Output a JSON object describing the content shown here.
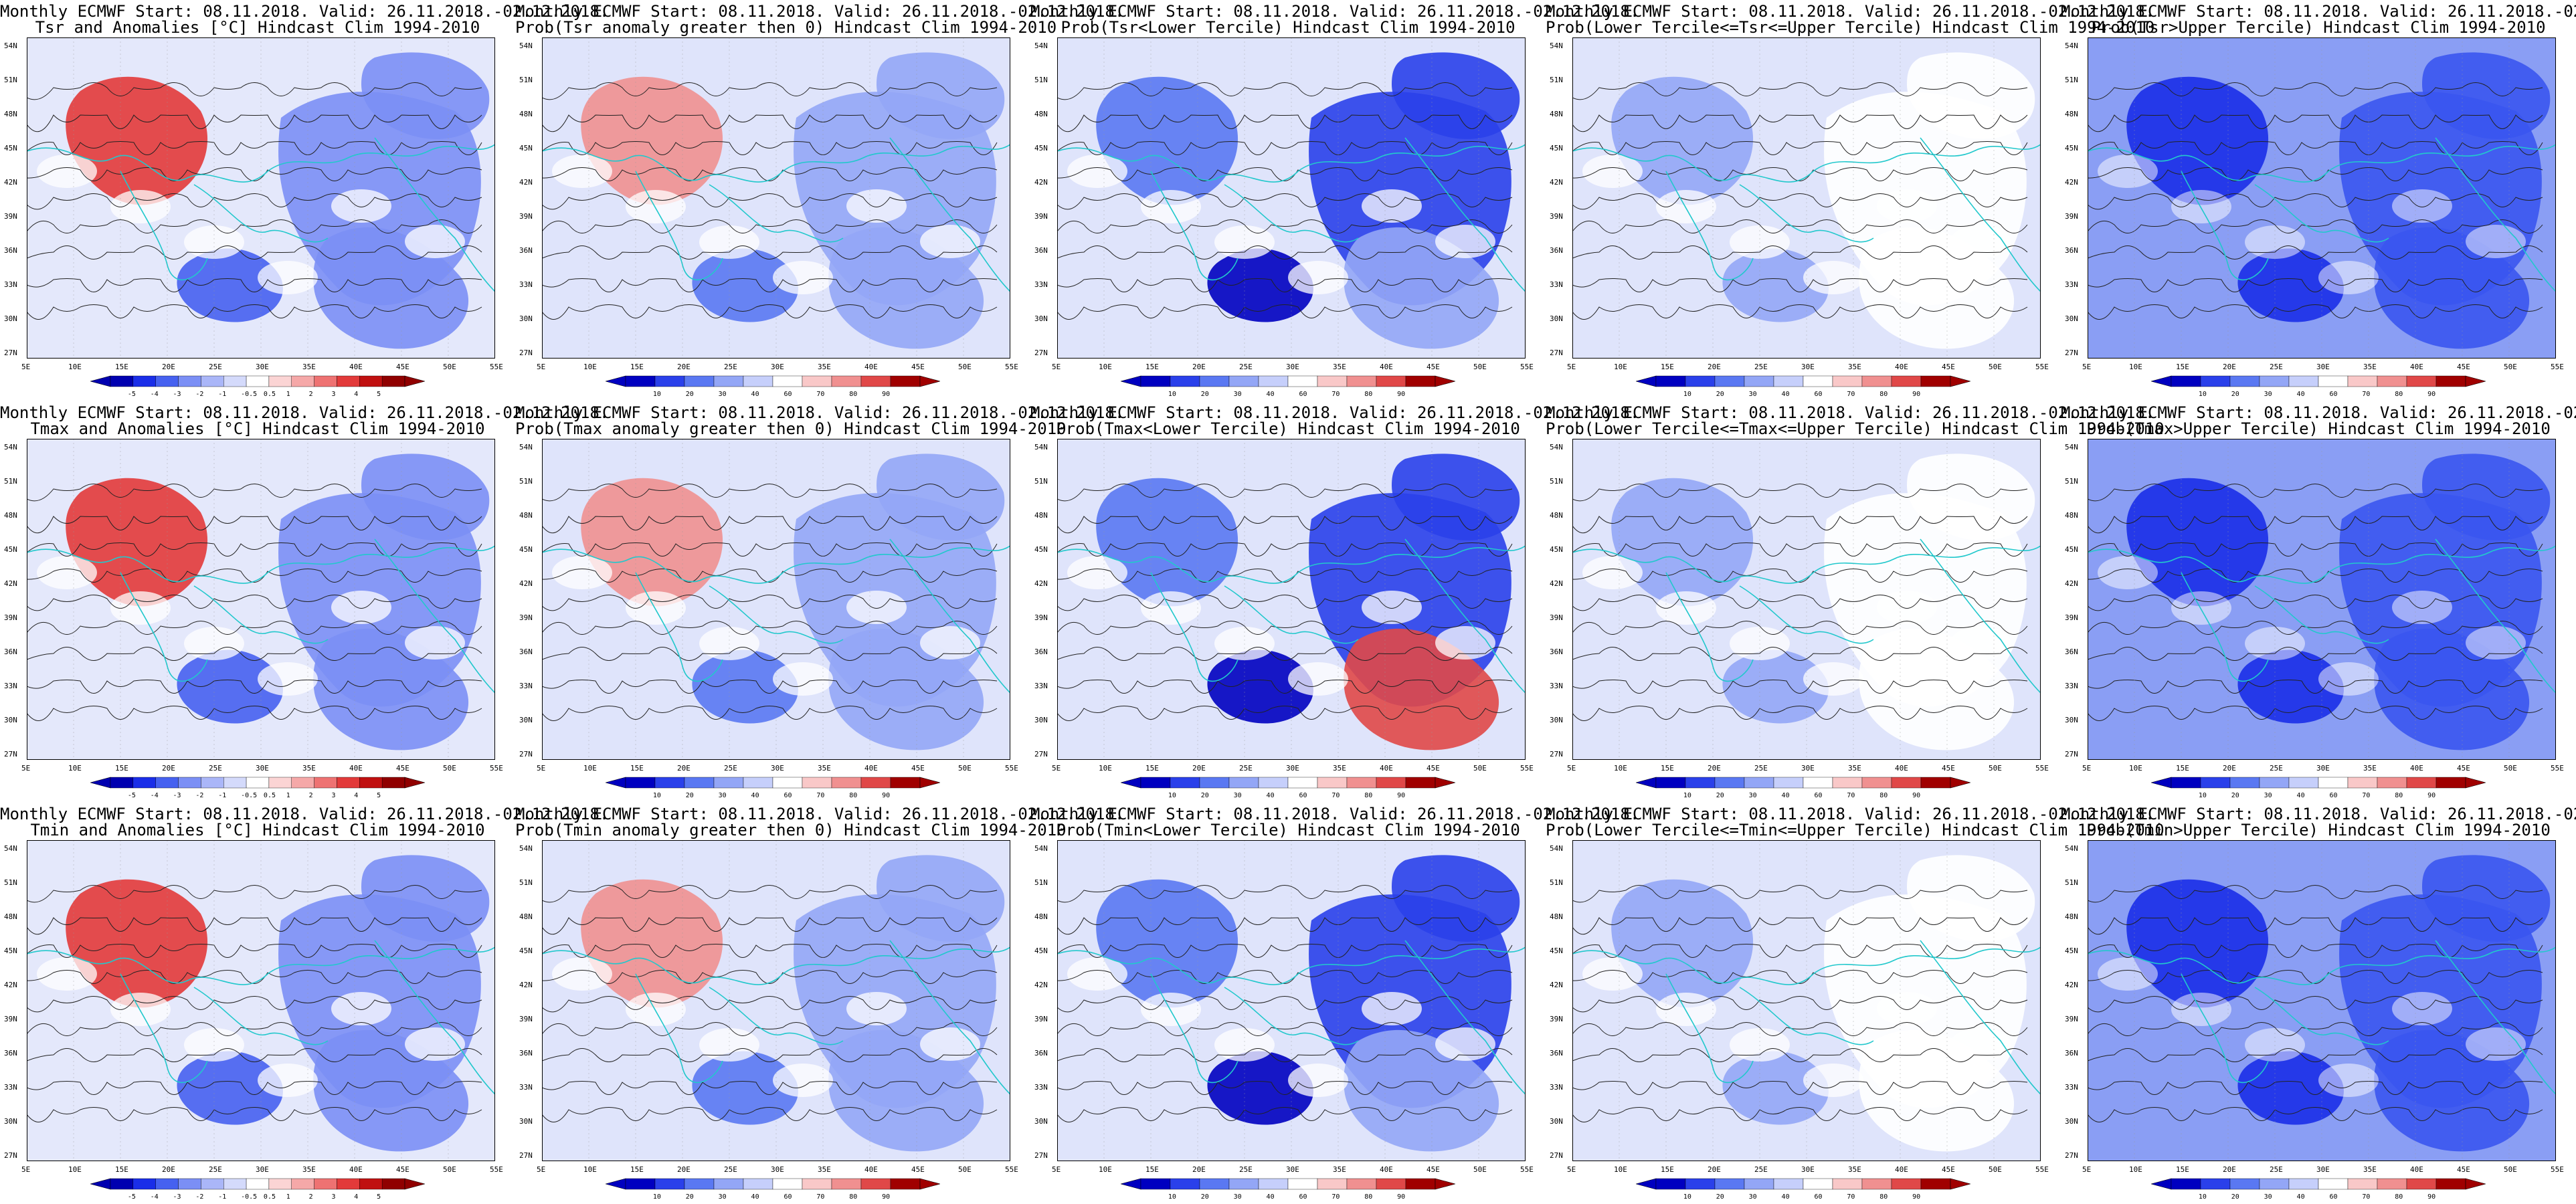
{
  "header_line": "Monthly ECMWF Start: 08.11.2018. Valid: 26.11.2018.-02.12.2018.",
  "lat_labels": [
    "54N",
    "51N",
    "48N",
    "45N",
    "42N",
    "39N",
    "36N",
    "33N",
    "30N",
    "27N"
  ],
  "lon_labels": [
    "5E",
    "10E",
    "15E",
    "20E",
    "25E",
    "30E",
    "35E",
    "40E",
    "45E",
    "50E",
    "55E"
  ],
  "colorbars": {
    "anomaly": {
      "labels": [
        "-5",
        "-4",
        "-3",
        "-2",
        "-1",
        "-0.5",
        "0.5",
        "1",
        "2",
        "3",
        "4",
        "5"
      ],
      "colors": [
        "#0000b0",
        "#1a2ee8",
        "#4661f0",
        "#7b8ff5",
        "#aab6f8",
        "#d4dafb",
        "#ffffff",
        "#fbd4d4",
        "#f5a8a8",
        "#ee7272",
        "#e23a3a",
        "#c01010",
        "#900000"
      ]
    },
    "probability": {
      "labels": [
        "10",
        "20",
        "30",
        "40",
        "60",
        "70",
        "80",
        "90"
      ],
      "colors": [
        "#0000c0",
        "#2a40ea",
        "#5a78f2",
        "#93a6f6",
        "#c6cffb",
        "#ffffff",
        "#f9c8c8",
        "#f09090",
        "#e04848",
        "#a00000"
      ]
    }
  },
  "rows": [
    {
      "variable": "Tsr",
      "panels": [
        {
          "title": "Tsr and Anomalies [°C] Hindcast Clim 1994-2010",
          "kind": "anomaly"
        },
        {
          "title": "Prob(Tsr anomaly greater then 0) Hindcast Clim 1994-2010",
          "kind": "probability"
        },
        {
          "title": "Prob(Tsr<Lower Tercile) Hindcast Clim 1994-2010",
          "kind": "probability"
        },
        {
          "title": "Prob(Lower Tercile<=Tsr<=Upper Tercile) Hindcast Clim 1994-2010",
          "kind": "probability"
        },
        {
          "title": "Prob(Tsr>Upper Tercile) Hindcast Clim 1994-2010",
          "kind": "probability"
        }
      ]
    },
    {
      "variable": "Tmax",
      "panels": [
        {
          "title": "Tmax and Anomalies [°C] Hindcast Clim 1994-2010",
          "kind": "anomaly"
        },
        {
          "title": "Prob(Tmax anomaly greater then 0) Hindcast Clim 1994-2010",
          "kind": "probability"
        },
        {
          "title": "Prob(Tmax<Lower Tercile) Hindcast Clim 1994-2010",
          "kind": "probability"
        },
        {
          "title": "Prob(Lower Tercile<=Tmax<=Upper Tercile) Hindcast Clim 1994-2010",
          "kind": "probability"
        },
        {
          "title": "Prob(Tmax>Upper Tercile) Hindcast Clim 1994-2010",
          "kind": "probability"
        }
      ]
    },
    {
      "variable": "Tmin",
      "panels": [
        {
          "title": "Tmin and Anomalies [°C] Hindcast Clim 1994-2010",
          "kind": "anomaly"
        },
        {
          "title": "Prob(Tmin anomaly greater then 0) Hindcast Clim 1994-2010",
          "kind": "probability"
        },
        {
          "title": "Prob(Tmin<Lower Tercile) Hindcast Clim 1994-2010",
          "kind": "probability"
        },
        {
          "title": "Prob(Lower Tercile<=Tmin<=Upper Tercile) Hindcast Clim 1994-2010",
          "kind": "probability"
        },
        {
          "title": "Prob(Tmin>Upper Tercile) Hindcast Clim 1994-2010",
          "kind": "probability"
        }
      ]
    }
  ]
}
